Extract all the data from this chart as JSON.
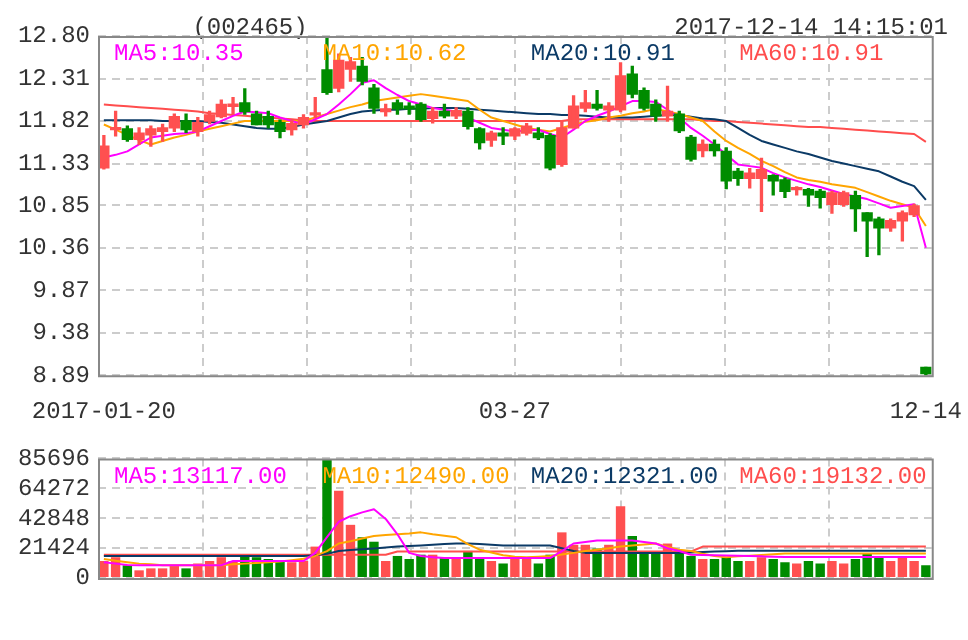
{
  "chart_data": [
    {
      "type": "candlestick",
      "title": "(002465)",
      "subtitle": "2017-12-14 14:15:01",
      "categories": [
        "2017-01-20",
        null,
        null,
        null,
        null,
        null,
        null,
        null,
        null,
        null,
        null,
        null,
        null,
        null,
        null,
        null,
        null,
        null,
        null,
        null,
        null,
        null,
        null,
        null,
        null,
        null,
        null,
        null,
        null,
        null,
        null,
        null,
        null,
        null,
        null,
        "03-27",
        null,
        null,
        null,
        null,
        null,
        null,
        null,
        null,
        null,
        null,
        null,
        null,
        null,
        null,
        null,
        null,
        null,
        null,
        null,
        null,
        null,
        null,
        null,
        null,
        null,
        null,
        null,
        null,
        null,
        null,
        null,
        null,
        null,
        null,
        "12-14"
      ],
      "ohlc": [
        [
          11.28,
          11.65,
          11.27,
          11.53
        ],
        [
          11.72,
          11.93,
          11.65,
          11.74
        ],
        [
          11.73,
          11.76,
          11.59,
          11.61
        ],
        [
          11.61,
          11.74,
          11.55,
          11.68
        ],
        [
          11.66,
          11.76,
          11.53,
          11.73
        ],
        [
          11.7,
          11.78,
          11.59,
          11.74
        ],
        [
          11.74,
          11.9,
          11.7,
          11.87
        ],
        [
          11.82,
          11.9,
          11.69,
          11.72
        ],
        [
          11.7,
          11.86,
          11.65,
          11.8
        ],
        [
          11.82,
          11.93,
          11.79,
          11.89
        ],
        [
          11.87,
          12.06,
          11.86,
          12.01
        ],
        [
          11.99,
          12.09,
          11.9,
          12.01
        ],
        [
          12.03,
          12.19,
          11.9,
          11.93
        ],
        [
          11.9,
          11.93,
          11.78,
          11.78
        ],
        [
          11.87,
          11.93,
          11.74,
          11.78
        ],
        [
          11.8,
          11.83,
          11.63,
          11.7
        ],
        [
          11.72,
          11.82,
          11.66,
          11.79
        ],
        [
          11.78,
          11.89,
          11.74,
          11.86
        ],
        [
          11.89,
          12.09,
          11.86,
          11.91
        ],
        [
          12.41,
          12.8,
          12.13,
          12.15
        ],
        [
          12.2,
          12.59,
          12.16,
          12.52
        ],
        [
          12.42,
          12.55,
          12.28,
          12.5
        ],
        [
          12.45,
          12.55,
          12.24,
          12.28
        ],
        [
          12.2,
          12.24,
          11.91,
          11.97
        ],
        [
          11.93,
          12.01,
          11.88,
          11.96
        ],
        [
          12.03,
          12.06,
          11.9,
          11.96
        ],
        [
          11.99,
          12.03,
          11.9,
          11.96
        ],
        [
          12.01,
          12.03,
          11.82,
          11.84
        ],
        [
          11.85,
          11.97,
          11.8,
          11.93
        ],
        [
          11.93,
          12.01,
          11.86,
          11.88
        ],
        [
          11.88,
          11.97,
          11.85,
          11.94
        ],
        [
          11.93,
          11.97,
          11.73,
          11.76
        ],
        [
          11.73,
          11.74,
          11.5,
          11.57
        ],
        [
          11.6,
          11.7,
          11.53,
          11.68
        ],
        [
          11.68,
          11.74,
          11.55,
          11.65
        ],
        [
          11.65,
          11.74,
          11.61,
          11.73
        ],
        [
          11.68,
          11.79,
          11.66,
          11.76
        ],
        [
          11.68,
          11.74,
          11.61,
          11.63
        ],
        [
          11.65,
          11.67,
          11.26,
          11.28
        ],
        [
          11.32,
          11.82,
          11.3,
          11.74
        ],
        [
          11.74,
          12.11,
          11.74,
          11.99
        ],
        [
          11.97,
          12.17,
          11.93,
          12.03
        ],
        [
          12.01,
          12.17,
          11.95,
          11.97
        ],
        [
          11.95,
          12.03,
          11.82,
          11.99
        ],
        [
          11.95,
          12.49,
          11.93,
          12.34
        ],
        [
          12.36,
          12.45,
          12.09,
          12.13
        ],
        [
          12.17,
          12.2,
          11.95,
          11.97
        ],
        [
          12.01,
          12.06,
          11.82,
          11.88
        ],
        [
          11.88,
          12.22,
          11.82,
          11.93
        ],
        [
          11.9,
          11.93,
          11.69,
          11.71
        ],
        [
          11.63,
          11.65,
          11.36,
          11.38
        ],
        [
          11.48,
          11.6,
          11.41,
          11.55
        ],
        [
          11.55,
          11.6,
          11.42,
          11.48
        ],
        [
          11.47,
          11.51,
          11.04,
          11.13
        ],
        [
          11.24,
          11.27,
          11.08,
          11.16
        ],
        [
          11.16,
          11.27,
          11.05,
          11.22
        ],
        [
          11.16,
          11.39,
          10.78,
          11.26
        ],
        [
          11.19,
          11.2,
          10.97,
          11.13
        ],
        [
          11.14,
          11.16,
          10.94,
          11.01
        ],
        [
          11.03,
          11.06,
          10.97,
          11.05
        ],
        [
          11.03,
          11.04,
          10.84,
          10.97
        ],
        [
          11.01,
          11.03,
          10.82,
          10.94
        ],
        [
          10.86,
          11.01,
          10.76,
          10.99
        ],
        [
          10.86,
          11.01,
          10.84,
          10.99
        ],
        [
          10.96,
          11.01,
          10.55,
          10.81
        ],
        [
          10.76,
          10.76,
          10.26,
          10.67
        ],
        [
          10.69,
          10.71,
          10.28,
          10.59
        ],
        [
          10.59,
          10.69,
          10.55,
          10.67
        ],
        [
          10.67,
          10.78,
          10.44,
          10.76
        ],
        [
          10.74,
          10.86,
          10.72,
          10.84
        ],
        [
          8.98,
          8.98,
          8.89,
          8.91
        ]
      ],
      "colors": [
        "#ff5050",
        "#ff5050",
        "#008c00",
        "#ff5050",
        "#ff5050",
        "#ff5050",
        "#ff5050",
        "#008c00",
        "#ff5050",
        "#ff5050",
        "#ff5050",
        "#ff5050",
        "#008c00",
        "#008c00",
        "#008c00",
        "#008c00",
        "#ff5050",
        "#ff5050",
        "#ff5050",
        "#008c00",
        "#ff5050",
        "#ff5050",
        "#008c00",
        "#008c00",
        "#ff5050",
        "#008c00",
        "#008c00",
        "#008c00",
        "#ff5050",
        "#008c00",
        "#ff5050",
        "#008c00",
        "#008c00",
        "#ff5050",
        "#008c00",
        "#ff5050",
        "#ff5050",
        "#008c00",
        "#008c00",
        "#ff5050",
        "#ff5050",
        "#ff5050",
        "#008c00",
        "#ff5050",
        "#ff5050",
        "#008c00",
        "#008c00",
        "#008c00",
        "#ff5050",
        "#008c00",
        "#008c00",
        "#ff5050",
        "#008c00",
        "#008c00",
        "#008c00",
        "#ff5050",
        "#ff5050",
        "#008c00",
        "#008c00",
        "#ff5050",
        "#008c00",
        "#008c00",
        "#ff5050",
        "#ff5050",
        "#008c00",
        "#008c00",
        "#008c00",
        "#ff5050",
        "#ff5050",
        "#ff5050",
        "#008c00"
      ],
      "series": [
        {
          "name": "MA5:10.35",
          "type": "line",
          "color": "#ff00ff",
          "values": [
            11.4,
            11.43,
            11.47,
            11.55,
            11.63,
            11.65,
            11.67,
            11.68,
            11.7,
            11.76,
            11.82,
            11.88,
            11.93,
            11.92,
            11.91,
            11.86,
            11.82,
            11.78,
            11.84,
            11.9,
            12.01,
            12.13,
            12.26,
            12.29,
            12.2,
            12.12,
            12.05,
            12.01,
            11.97,
            11.95,
            11.93,
            11.86,
            11.8,
            11.74,
            11.72,
            11.7,
            11.71,
            11.72,
            11.67,
            11.63,
            11.72,
            11.82,
            11.88,
            11.93,
            11.99,
            12.05,
            12.05,
            12.04,
            11.95,
            11.86,
            11.74,
            11.65,
            11.55,
            11.43,
            11.32,
            11.3,
            11.28,
            11.22,
            11.17,
            11.13,
            11.09,
            11.06,
            11.02,
            10.98,
            10.95,
            10.92,
            10.87,
            10.82,
            10.84,
            10.86,
            10.36
          ]
        },
        {
          "name": "MA10:10.62",
          "type": "line",
          "color": "#ffa500",
          "values": [
            11.78,
            11.72,
            11.66,
            11.6,
            11.55,
            11.59,
            11.63,
            11.66,
            11.7,
            11.73,
            11.76,
            11.79,
            11.82,
            11.82,
            11.82,
            11.82,
            11.82,
            11.82,
            11.86,
            11.9,
            11.94,
            11.98,
            12.01,
            12.05,
            12.07,
            12.09,
            12.11,
            12.13,
            12.11,
            12.09,
            12.07,
            12.05,
            11.95,
            11.86,
            11.82,
            11.78,
            11.74,
            11.72,
            11.7,
            11.74,
            11.78,
            11.81,
            11.83,
            11.86,
            11.88,
            11.91,
            11.93,
            11.96,
            11.93,
            11.9,
            11.86,
            11.82,
            11.7,
            11.59,
            11.51,
            11.44,
            11.36,
            11.3,
            11.23,
            11.17,
            11.14,
            11.12,
            11.09,
            11.07,
            11.05,
            11.0,
            10.95,
            10.9,
            10.86,
            10.82,
            10.61
          ]
        },
        {
          "name": "MA20:10.91",
          "type": "line",
          "color": "#0b3a66",
          "values": [
            11.83,
            11.83,
            11.83,
            11.83,
            11.83,
            11.82,
            11.82,
            11.82,
            11.82,
            11.81,
            11.8,
            11.78,
            11.76,
            11.74,
            11.73,
            11.73,
            11.75,
            11.78,
            11.8,
            11.82,
            11.86,
            11.9,
            11.93,
            11.94,
            11.95,
            11.95,
            11.96,
            11.96,
            11.97,
            11.97,
            11.97,
            11.96,
            11.95,
            11.94,
            11.93,
            11.92,
            11.91,
            11.9,
            11.9,
            11.89,
            11.89,
            11.88,
            11.87,
            11.86,
            11.86,
            11.86,
            11.87,
            11.88,
            11.89,
            11.89,
            11.87,
            11.85,
            11.84,
            11.82,
            11.74,
            11.66,
            11.59,
            11.55,
            11.51,
            11.47,
            11.44,
            11.4,
            11.36,
            11.33,
            11.3,
            11.27,
            11.24,
            11.18,
            11.12,
            11.07,
            10.91
          ]
        },
        {
          "name": "MA60:10.91",
          "type": "line",
          "color": "#ff4d4d",
          "values": [
            12.01,
            12.0,
            11.99,
            11.98,
            11.97,
            11.96,
            11.95,
            11.94,
            11.93,
            11.91,
            11.9,
            11.89,
            11.88,
            11.87,
            11.86,
            11.85,
            11.84,
            11.83,
            11.82,
            11.82,
            11.82,
            11.82,
            11.82,
            11.82,
            11.82,
            11.82,
            11.82,
            11.82,
            11.82,
            11.82,
            11.82,
            11.82,
            11.82,
            11.82,
            11.82,
            11.82,
            11.82,
            11.82,
            11.82,
            11.82,
            11.84,
            11.84,
            11.84,
            11.84,
            11.84,
            11.84,
            11.84,
            11.84,
            11.84,
            11.84,
            11.84,
            11.83,
            11.82,
            11.82,
            11.81,
            11.8,
            11.79,
            11.78,
            11.77,
            11.76,
            11.75,
            11.75,
            11.74,
            11.73,
            11.72,
            11.71,
            11.7,
            11.69,
            11.68,
            11.67,
            11.58
          ]
        }
      ],
      "ylim": [
        8.89,
        12.8
      ],
      "yticks": [
        8.89,
        9.38,
        9.87,
        10.36,
        10.85,
        11.33,
        11.82,
        12.31,
        {
          "value": 12.8,
          "label": "12.80"
        }
      ],
      "grid": true,
      "legend": "top"
    },
    {
      "type": "bar",
      "categories": [
        null,
        null,
        null,
        null,
        null,
        null,
        null,
        null,
        null,
        null,
        null,
        null,
        null,
        null,
        null,
        null,
        null,
        null,
        null,
        null,
        null,
        null,
        null,
        null,
        null,
        null,
        null,
        null,
        null,
        null,
        null,
        null,
        null,
        null,
        null,
        null,
        null,
        null,
        null,
        null,
        null,
        null,
        null,
        null,
        null,
        null,
        null,
        null,
        null,
        null,
        null,
        null,
        null,
        null,
        null,
        null,
        null,
        null,
        null,
        null,
        null,
        null,
        null,
        null,
        null,
        null,
        null,
        null,
        null,
        null,
        null
      ],
      "series": [
        {
          "type": "bar",
          "colors": [
            "#ff5050",
            "#ff5050",
            "#008c00",
            "#ff5050",
            "#ff5050",
            "#ff5050",
            "#ff5050",
            "#008c00",
            "#ff5050",
            "#ff5050",
            "#ff5050",
            "#ff5050",
            "#008c00",
            "#008c00",
            "#008c00",
            "#008c00",
            "#ff5050",
            "#ff5050",
            "#ff5050",
            "#008c00",
            "#ff5050",
            "#ff5050",
            "#008c00",
            "#008c00",
            "#ff5050",
            "#008c00",
            "#008c00",
            "#008c00",
            "#ff5050",
            "#008c00",
            "#ff5050",
            "#008c00",
            "#008c00",
            "#ff5050",
            "#008c00",
            "#ff5050",
            "#ff5050",
            "#008c00",
            "#008c00",
            "#ff5050",
            "#ff5050",
            "#ff5050",
            "#008c00",
            "#ff5050",
            "#ff5050",
            "#008c00",
            "#008c00",
            "#008c00",
            "#ff5050",
            "#008c00",
            "#008c00",
            "#ff5050",
            "#008c00",
            "#008c00",
            "#008c00",
            "#ff5050",
            "#ff5050",
            "#008c00",
            "#008c00",
            "#ff5050",
            "#008c00",
            "#008c00",
            "#ff5050",
            "#ff5050",
            "#008c00",
            "#008c00",
            "#008c00",
            "#ff5050",
            "#ff5050",
            "#ff5050",
            "#008c00"
          ],
          "values": [
            12200,
            14900,
            9100,
            5500,
            6900,
            6900,
            9100,
            6900,
            10400,
            12200,
            14900,
            12200,
            16700,
            14900,
            13600,
            12200,
            11300,
            12200,
            22500,
            84900,
            62600,
            38100,
            29200,
            26000,
            12200,
            15800,
            13600,
            16700,
            16700,
            14900,
            14900,
            19400,
            14900,
            12200,
            10400,
            13600,
            13600,
            10400,
            16700,
            32700,
            23800,
            23800,
            21100,
            23800,
            51500,
            30100,
            18000,
            18000,
            24700,
            18000,
            15800,
            13600,
            13600,
            14900,
            12200,
            12200,
            14900,
            13600,
            11300,
            10400,
            12200,
            10400,
            12200,
            10400,
            13600,
            18000,
            14900,
            12200,
            14900,
            12200,
            9100
          ]
        },
        {
          "name": "MA5:13117.00",
          "type": "line",
          "color": "#ff00ff",
          "values": [
            11300,
            10300,
            9300,
            9100,
            9100,
            9100,
            9100,
            9100,
            9100,
            9100,
            9100,
            12200,
            12200,
            12200,
            12200,
            12200,
            12200,
            12200,
            18000,
            29300,
            40300,
            44300,
            47000,
            49200,
            42300,
            31300,
            18000,
            15800,
            14900,
            14300,
            14300,
            14300,
            14300,
            14300,
            14300,
            14300,
            14300,
            14300,
            14300,
            19300,
            24700,
            25800,
            26900,
            26900,
            26900,
            26900,
            25800,
            24700,
            21300,
            19300,
            16700,
            16500,
            16300,
            16100,
            15900,
            15700,
            15500,
            15300,
            15000,
            15000,
            15000,
            15000,
            15000,
            15000,
            15000,
            15000,
            15000,
            15000,
            15000,
            15000,
            15000
          ]
        },
        {
          "name": "MA10:12490.00",
          "type": "line",
          "color": "#ffa500",
          "values": [
            13600,
            12300,
            11300,
            10300,
            9800,
            9100,
            9100,
            9100,
            9100,
            9100,
            9100,
            9800,
            10300,
            10800,
            11300,
            11800,
            12800,
            13800,
            15800,
            19300,
            24700,
            26300,
            28300,
            30100,
            30800,
            31300,
            31800,
            32700,
            31300,
            30300,
            29200,
            24300,
            20300,
            18300,
            16300,
            15300,
            14900,
            15300,
            15800,
            16800,
            18000,
            19300,
            20300,
            21300,
            22500,
            23300,
            24000,
            24700,
            22300,
            20300,
            19400,
            17300,
            15800,
            14900,
            15500,
            16000,
            16500,
            17000,
            17500,
            17500,
            17500,
            17500,
            17500,
            17500,
            17500,
            17500,
            17500,
            17500,
            17500,
            17500,
            17500
          ]
        },
        {
          "name": "MA20:12321.00",
          "type": "line",
          "color": "#0b3a66",
          "values": [
            15800,
            15800,
            15800,
            15800,
            15800,
            15800,
            15800,
            15800,
            15800,
            15800,
            15800,
            15800,
            15800,
            15800,
            15800,
            15800,
            15800,
            15800,
            16300,
            17300,
            19400,
            20000,
            20600,
            21200,
            21800,
            22500,
            22900,
            23300,
            23800,
            24300,
            24700,
            24700,
            24300,
            23800,
            23300,
            23300,
            23300,
            23300,
            23300,
            21300,
            19400,
            18000,
            18000,
            18000,
            18000,
            18000,
            18000,
            18000,
            18000,
            18000,
            18300,
            18600,
            18900,
            19200,
            19500,
            19500,
            19500,
            19500,
            19500,
            19500,
            19500,
            19500,
            19500,
            19500,
            19500,
            19500,
            19500,
            19500,
            19500,
            19500,
            19500
          ]
        },
        {
          "name": "MA60:19132.00",
          "type": "line",
          "color": "#ff4d4d",
          "values": [
            16700,
            16700,
            16700,
            16700,
            16700,
            16700,
            16700,
            16700,
            16700,
            16700,
            16700,
            16700,
            16700,
            16700,
            16700,
            16700,
            16700,
            16700,
            16700,
            16700,
            16700,
            16700,
            16700,
            16700,
            16700,
            19000,
            19000,
            19000,
            19000,
            19000,
            19000,
            19000,
            19000,
            19000,
            19000,
            19000,
            19000,
            19000,
            19000,
            19000,
            19000,
            19000,
            19000,
            19000,
            19000,
            19000,
            19000,
            19000,
            19000,
            19000,
            19000,
            22500,
            22500,
            22500,
            22500,
            22500,
            22500,
            22500,
            22500,
            22500,
            22500,
            22500,
            22500,
            22500,
            22500,
            22500,
            22500,
            22500,
            22500,
            22500,
            22500
          ]
        }
      ],
      "ylim": [
        0,
        85696
      ],
      "yticks": [
        0,
        21424,
        42848,
        64272,
        85696
      ],
      "grid": true,
      "legend": "top",
      "tick_labels": "y"
    }
  ]
}
